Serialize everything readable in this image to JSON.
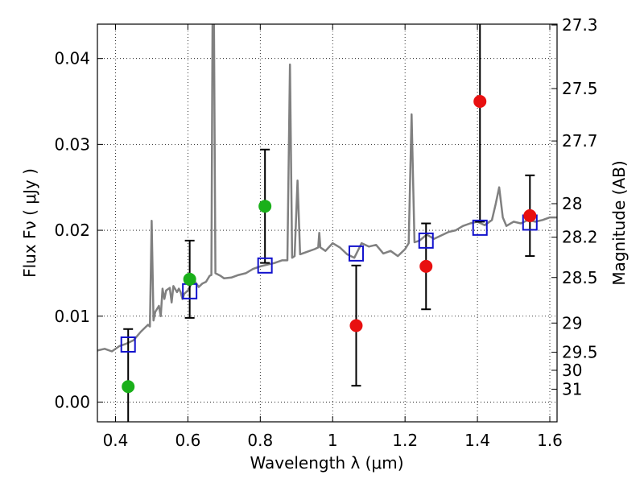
{
  "chart_data": {
    "type": "scatter",
    "xlabel": "Wavelength  λ (μm)",
    "ylabel": "Flux  Fν  ( μJy )",
    "ylabel_right": "Magnitude (AB)",
    "xlim": [
      0.35,
      1.62
    ],
    "ylim": [
      -0.0023,
      0.044
    ],
    "grid": true,
    "x_ticks": [
      0.4,
      0.6,
      0.8,
      1.0,
      1.2,
      1.4,
      1.6
    ],
    "x_tick_labels": [
      "0.4",
      "0.6",
      "0.8",
      "1",
      "1.2",
      "1.4",
      "1.6"
    ],
    "y_ticks": [
      0.0,
      0.01,
      0.02,
      0.03,
      0.04
    ],
    "y_tick_labels": [
      "0.00",
      "0.01",
      "0.02",
      "0.03",
      "0.04"
    ],
    "right_ticks": [
      {
        "label": "27.3",
        "flux": 0.0439
      },
      {
        "label": "27.5",
        "flux": 0.0365
      },
      {
        "label": "27.7",
        "flux": 0.0304
      },
      {
        "label": "28",
        "flux": 0.0231
      },
      {
        "label": "28.2",
        "flux": 0.0192
      },
      {
        "label": "28.5",
        "flux": 0.0145
      },
      {
        "label": "29",
        "flux": 0.0092
      },
      {
        "label": "29.5",
        "flux": 0.0058
      },
      {
        "label": "30",
        "flux": 0.0037
      },
      {
        "label": "31",
        "flux": 0.0015
      }
    ],
    "series": [
      {
        "marker": "circle",
        "color": "#1ab01a",
        "points": [
          {
            "x": 0.435,
            "y": 0.0018
          },
          {
            "x": 0.605,
            "y": 0.0143,
            "err": 0.0045
          },
          {
            "x": 0.813,
            "y": 0.0228,
            "err": 0.0066
          }
        ]
      },
      {
        "marker": "circle",
        "color": "#e81010",
        "points": [
          {
            "x": 1.065,
            "y": 0.0089,
            "err": 0.007
          },
          {
            "x": 1.258,
            "y": 0.0158,
            "err": 0.005
          },
          {
            "x": 1.407,
            "y": 0.035,
            "err": 0.014
          },
          {
            "x": 1.545,
            "y": 0.0217,
            "err": 0.0047
          }
        ]
      },
      {
        "marker": "square",
        "color": "#1111cc",
        "points": [
          {
            "x": 0.435,
            "y": 0.0067
          },
          {
            "x": 0.605,
            "y": 0.0129
          },
          {
            "x": 0.813,
            "y": 0.0159
          },
          {
            "x": 1.065,
            "y": 0.0173
          },
          {
            "x": 1.258,
            "y": 0.0188
          },
          {
            "x": 1.407,
            "y": 0.0203
          },
          {
            "x": 1.545,
            "y": 0.0209
          }
        ]
      },
      {
        "type": "line",
        "color": "#808080",
        "points": [
          [
            0.35,
            0.006
          ],
          [
            0.37,
            0.0062
          ],
          [
            0.39,
            0.0059
          ],
          [
            0.41,
            0.0065
          ],
          [
            0.43,
            0.0068
          ],
          [
            0.45,
            0.0072
          ],
          [
            0.47,
            0.0082
          ],
          [
            0.49,
            0.009
          ],
          [
            0.495,
            0.0088
          ],
          [
            0.5,
            0.0211
          ],
          [
            0.505,
            0.0095
          ],
          [
            0.51,
            0.0105
          ],
          [
            0.52,
            0.0112
          ],
          [
            0.525,
            0.01
          ],
          [
            0.53,
            0.0132
          ],
          [
            0.535,
            0.012
          ],
          [
            0.54,
            0.013
          ],
          [
            0.55,
            0.0133
          ],
          [
            0.555,
            0.0116
          ],
          [
            0.56,
            0.0135
          ],
          [
            0.57,
            0.0128
          ],
          [
            0.575,
            0.0132
          ],
          [
            0.58,
            0.0128
          ],
          [
            0.585,
            0.012
          ],
          [
            0.59,
            0.0126
          ],
          [
            0.6,
            0.013
          ],
          [
            0.61,
            0.0138
          ],
          [
            0.62,
            0.014
          ],
          [
            0.63,
            0.0134
          ],
          [
            0.64,
            0.0138
          ],
          [
            0.65,
            0.014
          ],
          [
            0.66,
            0.0147
          ],
          [
            0.665,
            0.0148
          ],
          [
            0.668,
            0.044
          ],
          [
            0.672,
            0.044
          ],
          [
            0.676,
            0.015
          ],
          [
            0.69,
            0.0147
          ],
          [
            0.7,
            0.0144
          ],
          [
            0.72,
            0.0145
          ],
          [
            0.74,
            0.0148
          ],
          [
            0.76,
            0.015
          ],
          [
            0.78,
            0.0155
          ],
          [
            0.8,
            0.0158
          ],
          [
            0.82,
            0.016
          ],
          [
            0.84,
            0.0162
          ],
          [
            0.86,
            0.0165
          ],
          [
            0.875,
            0.0165
          ],
          [
            0.882,
            0.0393
          ],
          [
            0.888,
            0.0168
          ],
          [
            0.895,
            0.017
          ],
          [
            0.903,
            0.0258
          ],
          [
            0.91,
            0.0172
          ],
          [
            0.93,
            0.0175
          ],
          [
            0.95,
            0.0178
          ],
          [
            0.96,
            0.018
          ],
          [
            0.963,
            0.0197
          ],
          [
            0.966,
            0.018
          ],
          [
            0.98,
            0.0176
          ],
          [
            1.0,
            0.0185
          ],
          [
            1.02,
            0.018
          ],
          [
            1.04,
            0.0172
          ],
          [
            1.06,
            0.0168
          ],
          [
            1.08,
            0.0185
          ],
          [
            1.1,
            0.0181
          ],
          [
            1.12,
            0.0183
          ],
          [
            1.14,
            0.0173
          ],
          [
            1.16,
            0.0176
          ],
          [
            1.18,
            0.017
          ],
          [
            1.2,
            0.0178
          ],
          [
            1.21,
            0.0185
          ],
          [
            1.218,
            0.0335
          ],
          [
            1.226,
            0.0186
          ],
          [
            1.24,
            0.0188
          ],
          [
            1.26,
            0.0195
          ],
          [
            1.28,
            0.019
          ],
          [
            1.3,
            0.0194
          ],
          [
            1.32,
            0.0198
          ],
          [
            1.34,
            0.02
          ],
          [
            1.36,
            0.0205
          ],
          [
            1.38,
            0.0208
          ],
          [
            1.4,
            0.021
          ],
          [
            1.42,
            0.0206
          ],
          [
            1.44,
            0.0212
          ],
          [
            1.45,
            0.023
          ],
          [
            1.46,
            0.025
          ],
          [
            1.47,
            0.0215
          ],
          [
            1.48,
            0.0205
          ],
          [
            1.5,
            0.021
          ],
          [
            1.52,
            0.0208
          ],
          [
            1.54,
            0.0212
          ],
          [
            1.56,
            0.021
          ],
          [
            1.58,
            0.0212
          ],
          [
            1.6,
            0.0215
          ],
          [
            1.62,
            0.0215
          ]
        ]
      }
    ]
  }
}
